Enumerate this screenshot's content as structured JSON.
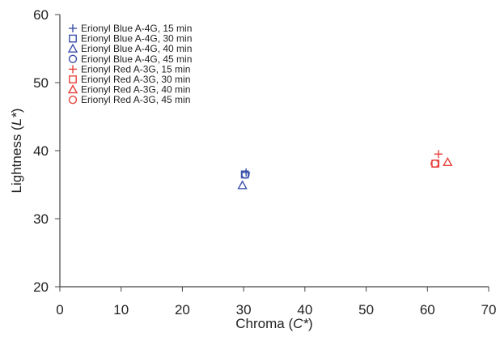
{
  "chart_data": {
    "type": "scatter",
    "xlabel_prefix": "Chroma (",
    "xlabel_var": "C*",
    "xlabel_suffix": ")",
    "ylabel_prefix": "Lightness (",
    "ylabel_var": "L*",
    "ylabel_suffix": ")",
    "xlim": [
      0,
      70
    ],
    "ylim": [
      20,
      60
    ],
    "xticks": [
      0,
      10,
      20,
      30,
      40,
      50,
      60,
      70
    ],
    "yticks": [
      20,
      30,
      40,
      50,
      60
    ],
    "grid": false,
    "legend_position": "top-left",
    "series": [
      {
        "name": "Erionyl Blue A-4G, 15 min",
        "color": "#3a4fa8",
        "marker": "plus",
        "points": [
          {
            "x": 30.4,
            "y": 36.8
          }
        ]
      },
      {
        "name": "Erionyl Blue A-4G, 30 min",
        "color": "#3a4fa8",
        "marker": "square",
        "points": [
          {
            "x": 30.2,
            "y": 36.5
          }
        ]
      },
      {
        "name": "Erionyl Blue A-4G, 40 min",
        "color": "#3a4fa8",
        "marker": "triangle",
        "points": [
          {
            "x": 29.8,
            "y": 34.9
          }
        ]
      },
      {
        "name": "Erionyl Blue A-4G, 45 min",
        "color": "#3a4fa8",
        "marker": "circle",
        "points": [
          {
            "x": 30.3,
            "y": 36.5
          }
        ]
      },
      {
        "name": "Erionyl Red A-3G, 15 min",
        "color": "#e8413a",
        "marker": "plus",
        "points": [
          {
            "x": 61.8,
            "y": 39.5
          }
        ]
      },
      {
        "name": "Erionyl Red A-3G, 30 min",
        "color": "#e8413a",
        "marker": "square",
        "points": [
          {
            "x": 61.3,
            "y": 38.1
          }
        ]
      },
      {
        "name": "Erionyl Red A-3G, 40 min",
        "color": "#e8413a",
        "marker": "triangle",
        "points": [
          {
            "x": 63.3,
            "y": 38.3
          }
        ]
      },
      {
        "name": "Erionyl Red A-3G, 45 min",
        "color": "#e8413a",
        "marker": "circle",
        "points": [
          {
            "x": 61.2,
            "y": 38.1
          }
        ]
      }
    ]
  }
}
